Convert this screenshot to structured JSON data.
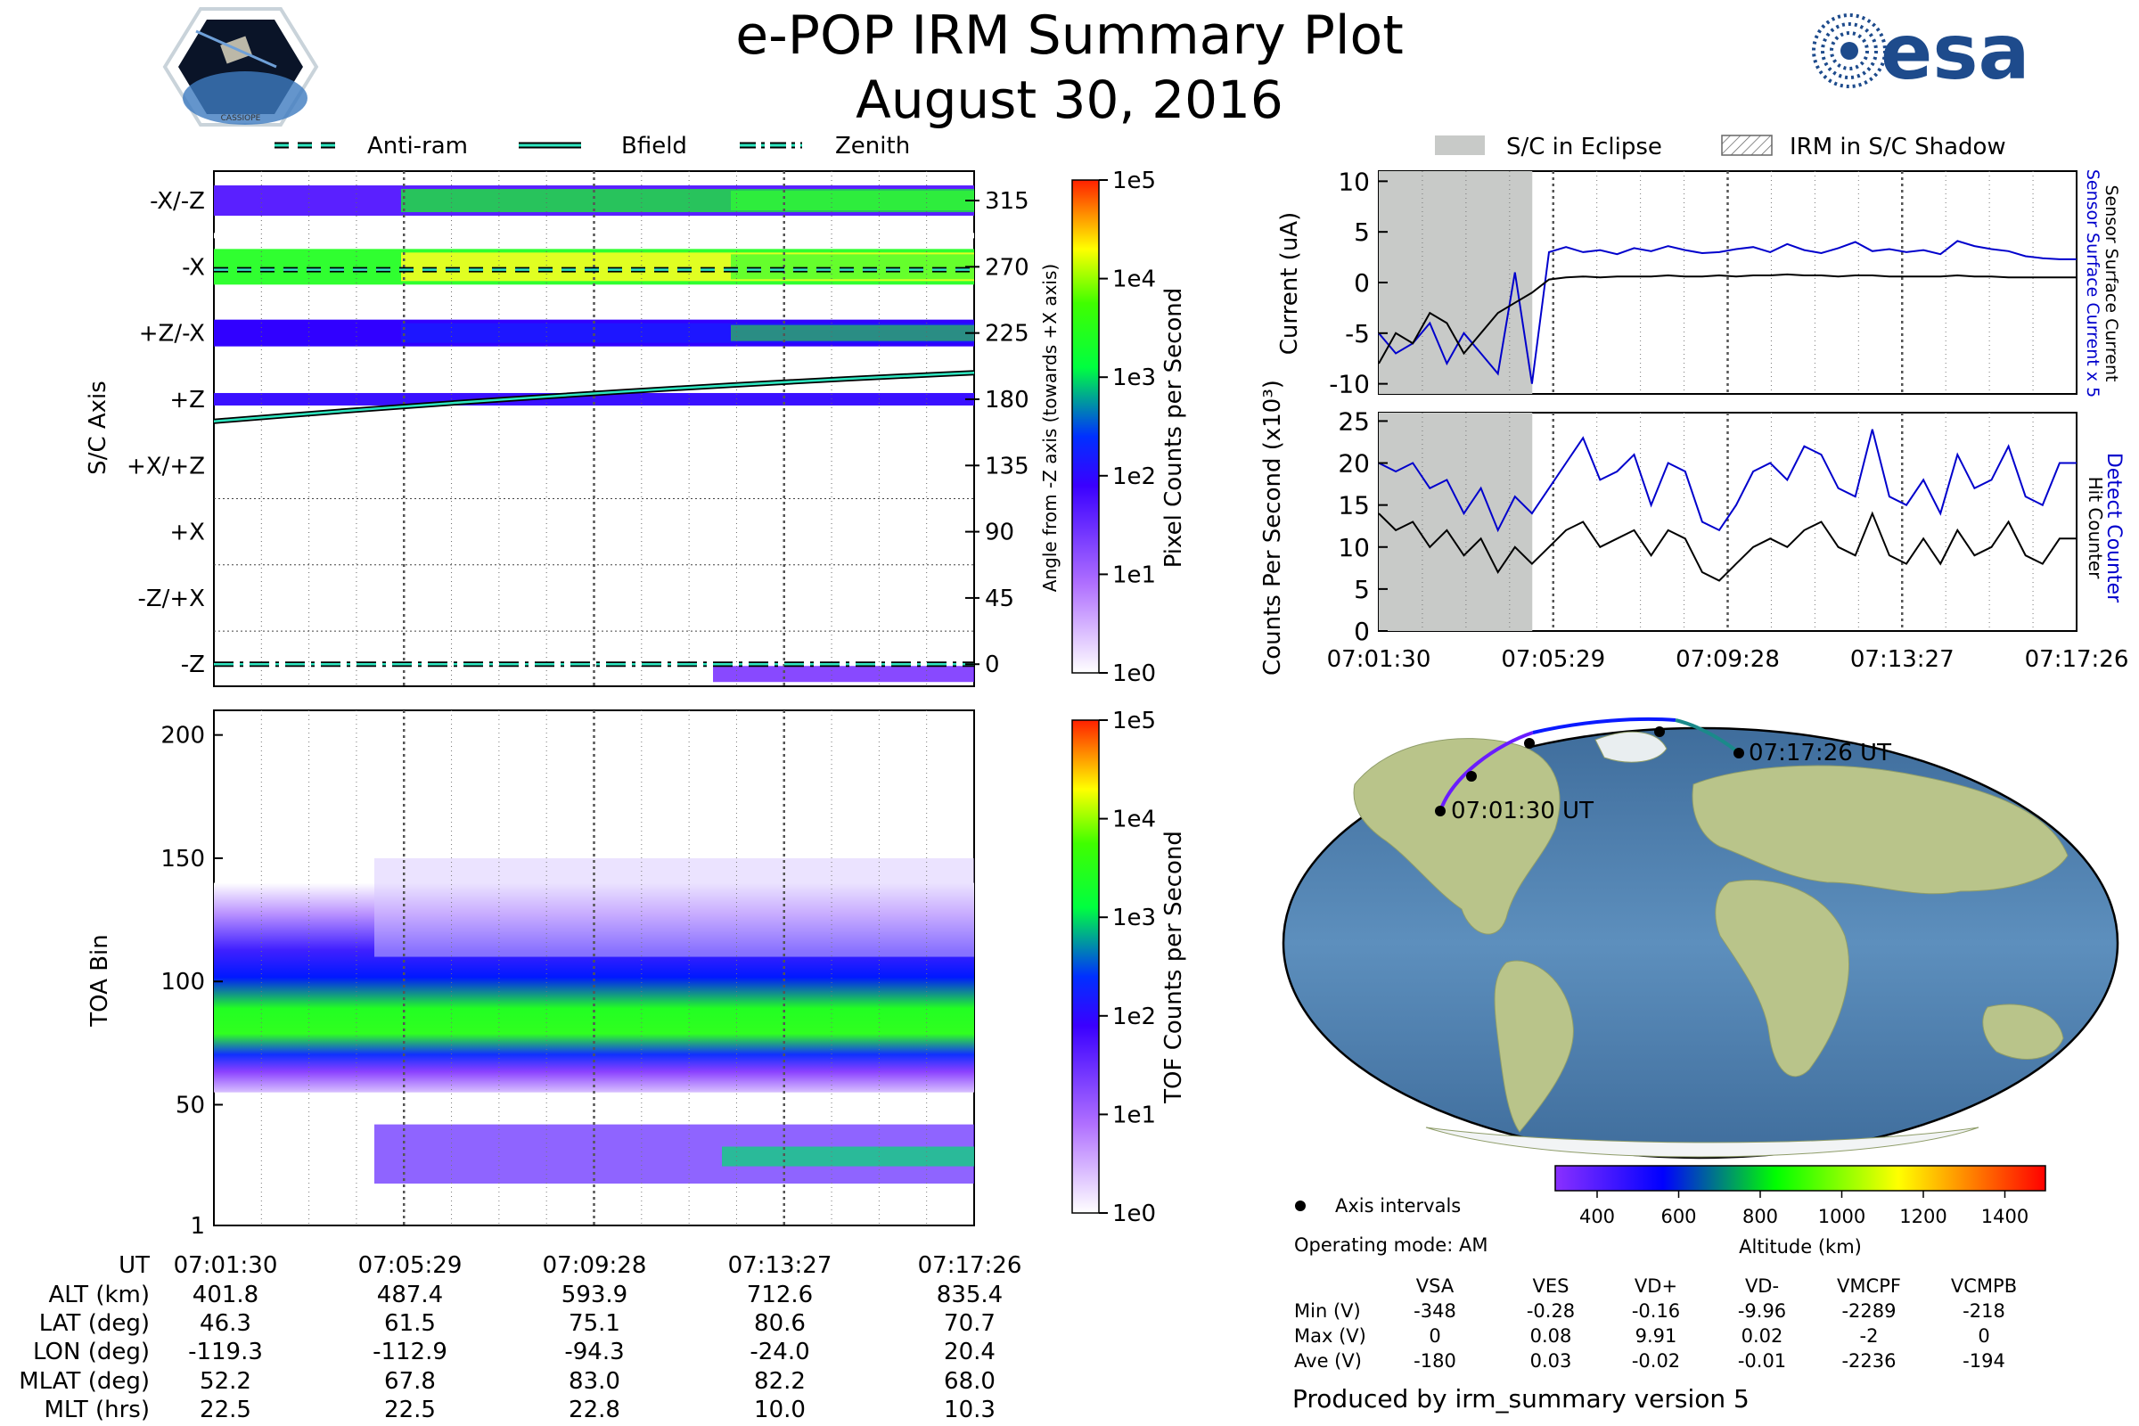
{
  "header": {
    "title": "e-POP IRM Summary Plot",
    "subtitle": "August 30, 2016",
    "esa_logo_text": "esa",
    "cassiope_logo_text": "CASSIOPE"
  },
  "footer": "Produced by irm_summary version 5",
  "chart_data": [
    {
      "id": "pixel_counts",
      "type": "heatmap",
      "ylabel": "S/C Axis",
      "y2label": "Angle from -Z axis (towards +X axis)",
      "ytick_labels": [
        "-X/-Z",
        "-X",
        "+Z/-X",
        "+Z",
        "+X/+Z",
        "+X",
        "-Z/+X",
        "-Z"
      ],
      "y2_ticks": [
        315,
        270,
        225,
        180,
        135,
        90,
        45,
        0
      ],
      "ylim": [
        -15,
        335
      ],
      "xlim_minutes": [
        0,
        16
      ],
      "legend": [
        "Anti-ram",
        "Bfield",
        "Zenith"
      ],
      "antiram_angle": 268,
      "zenith_angle": 0,
      "bfield_angle": [
        165,
        198
      ],
      "colorbar": {
        "label": "Pixel Counts per Second",
        "ticks": [
          "1e5",
          "1e4",
          "1e3",
          "1e2",
          "1e1",
          "1e0"
        ]
      }
    },
    {
      "id": "tof_counts",
      "type": "heatmap",
      "ylabel": "TOA Bin",
      "yticks": [
        200,
        150,
        100,
        50,
        1
      ],
      "ylim": [
        1,
        210
      ],
      "colorbar": {
        "label": "TOF Counts per Second",
        "ticks": [
          "1e5",
          "1e4",
          "1e3",
          "1e2",
          "1e1",
          "1e0"
        ]
      }
    },
    {
      "id": "currents",
      "type": "line",
      "ylabel": "Current (uA)",
      "ylim": [
        -11,
        11
      ],
      "yticks": [
        10,
        5,
        0,
        -5,
        -10
      ],
      "legend": [
        "S/C in Eclipse",
        "IRM in S/C Shadow"
      ],
      "series": [
        {
          "name": "Sensor Surface Current x 5",
          "color": "#0000cc",
          "values": [
            -5,
            -7,
            -6,
            -4,
            -8,
            -5,
            -7,
            -9,
            1,
            -10,
            3,
            3.5,
            3,
            3.2,
            2.8,
            3.4,
            3.1,
            3.6,
            3.2,
            2.9,
            3.0,
            3.3,
            3.5,
            3.0,
            3.8,
            3.2,
            2.9,
            3.4,
            4.0,
            3.1,
            3.3,
            3.0,
            3.2,
            2.8,
            4.1,
            3.6,
            3.3,
            3.1,
            2.6,
            2.4,
            2.3,
            2.3
          ]
        },
        {
          "name": "Sensor Surface Current",
          "color": "#000000",
          "values": [
            -8,
            -5,
            -6,
            -3,
            -4,
            -7,
            -5,
            -3,
            -2,
            -1,
            0.3,
            0.5,
            0.6,
            0.5,
            0.6,
            0.6,
            0.6,
            0.7,
            0.6,
            0.6,
            0.7,
            0.6,
            0.7,
            0.7,
            0.8,
            0.7,
            0.7,
            0.6,
            0.7,
            0.7,
            0.6,
            0.6,
            0.6,
            0.6,
            0.7,
            0.6,
            0.6,
            0.5,
            0.5,
            0.5,
            0.5,
            0.5
          ]
        }
      ],
      "eclipse_fraction": 0.22
    },
    {
      "id": "counters",
      "type": "line",
      "ylabel": "Counts Per Second (x10³)",
      "ylim": [
        0,
        26
      ],
      "yticks": [
        25,
        20,
        15,
        10,
        5,
        0
      ],
      "xtick_labels": [
        "07:01:30",
        "07:05:29",
        "07:09:28",
        "07:13:27",
        "07:17:26"
      ],
      "series": [
        {
          "name": "Detect Counter",
          "color": "#0000cc",
          "values": [
            20,
            19,
            20,
            17,
            18,
            14,
            17,
            12,
            16,
            14,
            17,
            20,
            23,
            18,
            19,
            21,
            15,
            20,
            19,
            13,
            12,
            15,
            19,
            20,
            18,
            22,
            21,
            17,
            16,
            24,
            16,
            15,
            18,
            14,
            21,
            17,
            18,
            22,
            16,
            15,
            20,
            20
          ]
        },
        {
          "name": "Hit Counter",
          "color": "#000000",
          "values": [
            14,
            12,
            13,
            10,
            12,
            9,
            11,
            7,
            10,
            8,
            10,
            12,
            13,
            10,
            11,
            12,
            9,
            12,
            11,
            7,
            6,
            8,
            10,
            11,
            10,
            12,
            13,
            10,
            9,
            14,
            9,
            8,
            11,
            8,
            12,
            9,
            10,
            13,
            9,
            8,
            11,
            11
          ]
        }
      ]
    }
  ],
  "ephemeris": {
    "row_labels": [
      "UT",
      "ALT (km)",
      "LAT (deg)",
      "LON (deg)",
      "MLAT (deg)",
      "MLT (hrs)"
    ],
    "columns": [
      [
        "07:01:30",
        "401.8",
        "46.3",
        "-119.3",
        "52.2",
        "22.5"
      ],
      [
        "07:05:29",
        "487.4",
        "61.5",
        "-112.9",
        "67.8",
        "22.5"
      ],
      [
        "07:09:28",
        "593.9",
        "75.1",
        "-94.3",
        "83.0",
        "22.8"
      ],
      [
        "07:13:27",
        "712.6",
        "80.6",
        "-24.0",
        "82.2",
        "10.0"
      ],
      [
        "07:17:26",
        "835.4",
        "70.7",
        "20.4",
        "68.0",
        "10.3"
      ]
    ]
  },
  "map": {
    "start_label": "07:01:30 UT",
    "end_label": "07:17:26 UT",
    "legend_label": "Axis intervals",
    "colorbar": {
      "label": "Altitude (km)",
      "ticks": [
        "400",
        "600",
        "800",
        "1000",
        "1200",
        "1400"
      ]
    }
  },
  "voltages": {
    "operating_mode": "Operating mode: AM",
    "headers": [
      "VSA",
      "VES",
      "VD+",
      "VD-",
      "VMCPF",
      "VCMPB"
    ],
    "rows": [
      {
        "label": "Min (V)",
        "values": [
          "-348",
          "-0.28",
          "-0.16",
          "-9.96",
          "-2289",
          "-218"
        ]
      },
      {
        "label": "Max (V)",
        "values": [
          "0",
          "0.08",
          "9.91",
          "0.02",
          "-2",
          "0"
        ]
      },
      {
        "label": "Ave (V)",
        "values": [
          "-180",
          "0.03",
          "-0.02",
          "-0.01",
          "-2236",
          "-194"
        ]
      }
    ]
  }
}
